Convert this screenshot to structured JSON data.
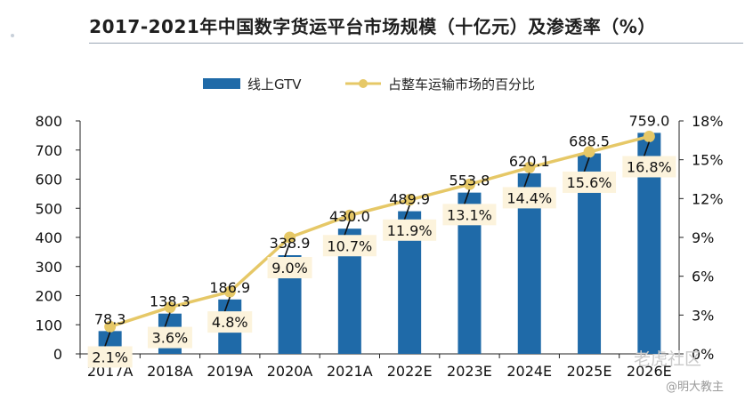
{
  "chart_data": {
    "type": "bar",
    "title": "2017-2021年中国数字货运平台市场规模（十亿元）及渗透率（%）",
    "categories": [
      "2017A",
      "2018A",
      "2019A",
      "2020A",
      "2021A",
      "2022E",
      "2023E",
      "2024E",
      "2025E",
      "2026E"
    ],
    "series": [
      {
        "name": "线上GTV",
        "kind": "bar",
        "axis": "left",
        "color": "#1f6aa8",
        "values": [
          78.3,
          138.3,
          186.9,
          338.9,
          430.0,
          489.9,
          553.8,
          620.1,
          688.5,
          759.0
        ],
        "labels": [
          "78.3",
          "138.3",
          "186.9",
          "338.9",
          "430.0",
          "489.9",
          "553.8",
          "620.1",
          "688.5",
          "759.0"
        ]
      },
      {
        "name": "占整车运输市场的百分比",
        "kind": "line",
        "axis": "right",
        "color": "#e6c867",
        "values": [
          2.1,
          3.6,
          4.8,
          9.0,
          10.7,
          11.9,
          13.1,
          14.4,
          15.6,
          16.8
        ],
        "labels": [
          "2.1%",
          "3.6%",
          "4.8%",
          "9.0%",
          "10.7%",
          "11.9%",
          "13.1%",
          "14.4%",
          "15.6%",
          "16.8%"
        ]
      }
    ],
    "y_left": {
      "ylim": [
        0,
        800
      ],
      "ticks": [
        "0",
        "100",
        "200",
        "300",
        "400",
        "500",
        "600",
        "700",
        "800"
      ]
    },
    "y_right": {
      "ylim": [
        0,
        18
      ],
      "ticks": [
        "0%",
        "3%",
        "6%",
        "9%",
        "12%",
        "15%",
        "18%"
      ]
    },
    "legend": "top-center",
    "grid": false
  },
  "watermark": {
    "text1": "老虎社区",
    "text2": "@明大教主"
  }
}
